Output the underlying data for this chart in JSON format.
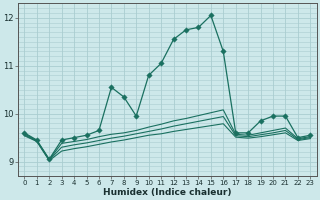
{
  "title": "",
  "xlabel": "Humidex (Indice chaleur)",
  "ylabel": "",
  "xlim_min": -0.5,
  "xlim_max": 23.5,
  "ylim": [
    8.7,
    12.3
  ],
  "yticks": [
    9,
    10,
    11,
    12
  ],
  "xticks": [
    0,
    1,
    2,
    3,
    4,
    5,
    6,
    7,
    8,
    9,
    10,
    11,
    12,
    13,
    14,
    15,
    16,
    17,
    18,
    19,
    20,
    21,
    22,
    23
  ],
  "background_color": "#cde8ea",
  "grid_color": "#aacdd0",
  "line_color": "#1a7060",
  "main_line": {
    "x": [
      0,
      1,
      2,
      3,
      4,
      5,
      6,
      7,
      8,
      9,
      10,
      11,
      12,
      13,
      14,
      15,
      16,
      17,
      18,
      19,
      20,
      21,
      22,
      23
    ],
    "y": [
      9.6,
      9.45,
      9.05,
      9.45,
      9.5,
      9.55,
      9.65,
      10.55,
      10.35,
      9.95,
      10.8,
      11.05,
      11.55,
      11.75,
      11.8,
      12.05,
      11.3,
      9.6,
      9.6,
      9.85,
      9.95,
      9.95,
      9.5,
      9.55
    ]
  },
  "band_lines": [
    {
      "x": [
        0,
        1,
        2,
        3,
        4,
        5,
        6,
        7,
        8,
        9,
        10,
        11,
        12,
        13,
        14,
        15,
        16,
        17,
        18,
        19,
        20,
        21,
        22,
        23
      ],
      "y": [
        9.58,
        9.44,
        9.04,
        9.38,
        9.42,
        9.46,
        9.52,
        9.57,
        9.6,
        9.65,
        9.72,
        9.78,
        9.85,
        9.9,
        9.96,
        10.02,
        10.08,
        9.57,
        9.55,
        9.6,
        9.65,
        9.7,
        9.48,
        9.52
      ]
    },
    {
      "x": [
        0,
        1,
        2,
        3,
        4,
        5,
        6,
        7,
        8,
        9,
        10,
        11,
        12,
        13,
        14,
        15,
        16,
        17,
        18,
        19,
        20,
        21,
        22,
        23
      ],
      "y": [
        9.56,
        9.43,
        9.03,
        9.3,
        9.35,
        9.39,
        9.44,
        9.49,
        9.53,
        9.58,
        9.63,
        9.68,
        9.74,
        9.79,
        9.84,
        9.89,
        9.94,
        9.54,
        9.52,
        9.56,
        9.6,
        9.65,
        9.46,
        9.5
      ]
    },
    {
      "x": [
        0,
        1,
        2,
        3,
        4,
        5,
        6,
        7,
        8,
        9,
        10,
        11,
        12,
        13,
        14,
        15,
        16,
        17,
        18,
        19,
        20,
        21,
        22,
        23
      ],
      "y": [
        9.54,
        9.42,
        9.02,
        9.22,
        9.27,
        9.31,
        9.36,
        9.41,
        9.45,
        9.5,
        9.55,
        9.58,
        9.63,
        9.67,
        9.71,
        9.75,
        9.79,
        9.51,
        9.49,
        9.52,
        9.56,
        9.6,
        9.44,
        9.48
      ]
    }
  ]
}
